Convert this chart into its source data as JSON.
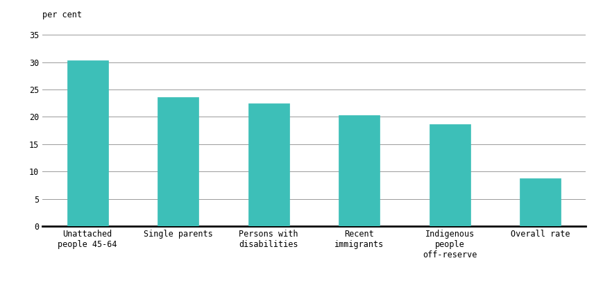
{
  "categories": [
    "Unattached\npeople 45-64",
    "Single parents",
    "Persons with\ndisabilities",
    "Recent\nimmigrants",
    "Indigenous\npeople\noff-reserve",
    "Overall rate"
  ],
  "values": [
    30.3,
    23.6,
    22.4,
    20.3,
    18.7,
    8.8
  ],
  "bar_color": "#3dbfb8",
  "bar_edge_color": "#3dbfb8",
  "ylabel": "per cent",
  "ylim": [
    0,
    35
  ],
  "yticks": [
    0,
    5,
    10,
    15,
    20,
    25,
    30,
    35
  ],
  "background_color": "#ffffff",
  "grid_color": "#999999",
  "bar_width": 0.45
}
